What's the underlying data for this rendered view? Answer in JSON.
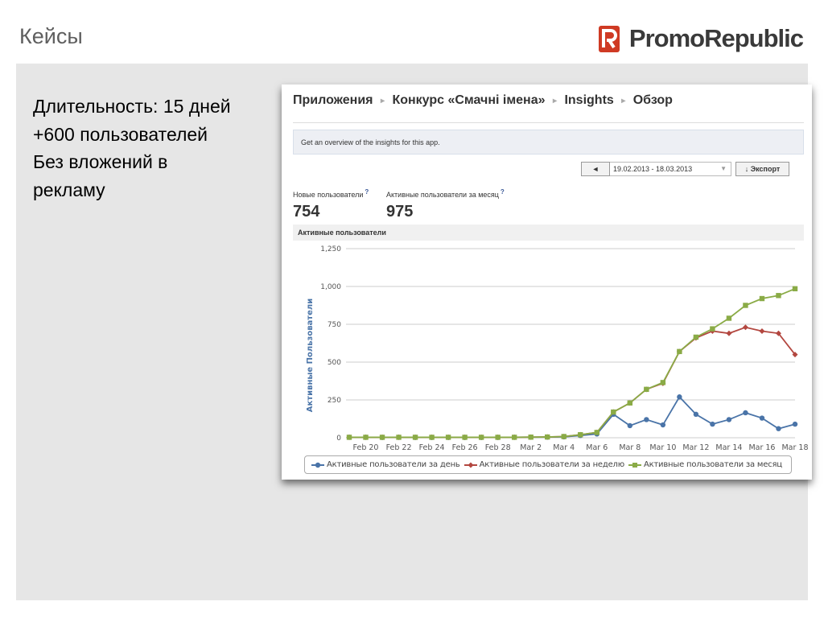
{
  "slide": {
    "title": "Кейсы",
    "logo_text": "PromoRepublic",
    "bullets": [
      "Длительность: 15 дней",
      "+600 пользователей",
      "Без вложений в",
      "рекламу"
    ]
  },
  "screenshot": {
    "breadcrumbs": [
      "Приложения",
      "Конкурс «Смачні імена»",
      "Insights",
      "Обзор"
    ],
    "breadcrumb_separator": "▸",
    "info_text": "Get an overview of the insights for this app.",
    "prev_button": "◄",
    "date_range": "19.02.2013 - 18.03.2013",
    "date_dropdown_icon": "▼",
    "export_label": "Экспорт",
    "export_icon": "↓",
    "metrics": [
      {
        "label": "Новые пользователи",
        "help": "?",
        "value": "754"
      },
      {
        "label": "Активные пользователи за месяц",
        "help": "?",
        "value": "975"
      }
    ],
    "chart_section_title": "Активные пользователи"
  },
  "colors": {
    "day": "#4a74a8",
    "week": "#b34740",
    "month": "#8aab46",
    "logo": "#cf3a24"
  },
  "chart_data": {
    "type": "line",
    "title": "Активные пользователи",
    "ylabel": "Активные Пользователи",
    "xlabel": "",
    "ylim": [
      0,
      1250
    ],
    "yticks": [
      "1,250",
      "1,000",
      "750",
      "500",
      "250",
      "0"
    ],
    "ytick_values": [
      1250,
      1000,
      750,
      500,
      250,
      0
    ],
    "x": [
      "Feb 19",
      "Feb 20",
      "Feb 21",
      "Feb 22",
      "Feb 23",
      "Feb 24",
      "Feb 25",
      "Feb 26",
      "Feb 27",
      "Feb 28",
      "Mar 1",
      "Mar 2",
      "Mar 3",
      "Mar 4",
      "Mar 5",
      "Mar 6",
      "Mar 7",
      "Mar 8",
      "Mar 9",
      "Mar 10",
      "Mar 11",
      "Mar 12",
      "Mar 13",
      "Mar 14",
      "Mar 15",
      "Mar 16",
      "Mar 17",
      "Mar 18"
    ],
    "xtick_labels": [
      "Feb 20",
      "Feb 22",
      "Feb 24",
      "Feb 26",
      "Feb 28",
      "Mar 2",
      "Mar 4",
      "Mar 6",
      "Mar 8",
      "Mar 10",
      "Mar 12",
      "Mar 14",
      "Mar 16",
      "Mar 18"
    ],
    "grid": true,
    "legend_position": "bottom",
    "series": [
      {
        "name": "Активные пользователи за день",
        "key": "day",
        "values": [
          3,
          3,
          2,
          3,
          2,
          2,
          2,
          2,
          2,
          2,
          3,
          4,
          4,
          6,
          15,
          25,
          155,
          80,
          120,
          85,
          270,
          155,
          90,
          120,
          165,
          130,
          60,
          90
        ]
      },
      {
        "name": "Активные пользователи за неделю",
        "key": "week",
        "values": [
          3,
          3,
          3,
          3,
          3,
          3,
          3,
          3,
          3,
          3,
          3,
          4,
          5,
          8,
          20,
          35,
          170,
          230,
          320,
          360,
          570,
          660,
          705,
          690,
          730,
          705,
          690,
          550
        ]
      },
      {
        "name": "Активные пользователи за месяц",
        "key": "month",
        "values": [
          3,
          3,
          3,
          3,
          3,
          3,
          3,
          3,
          3,
          3,
          3,
          4,
          5,
          8,
          20,
          35,
          170,
          230,
          320,
          365,
          570,
          665,
          720,
          790,
          875,
          920,
          940,
          985
        ]
      }
    ]
  }
}
